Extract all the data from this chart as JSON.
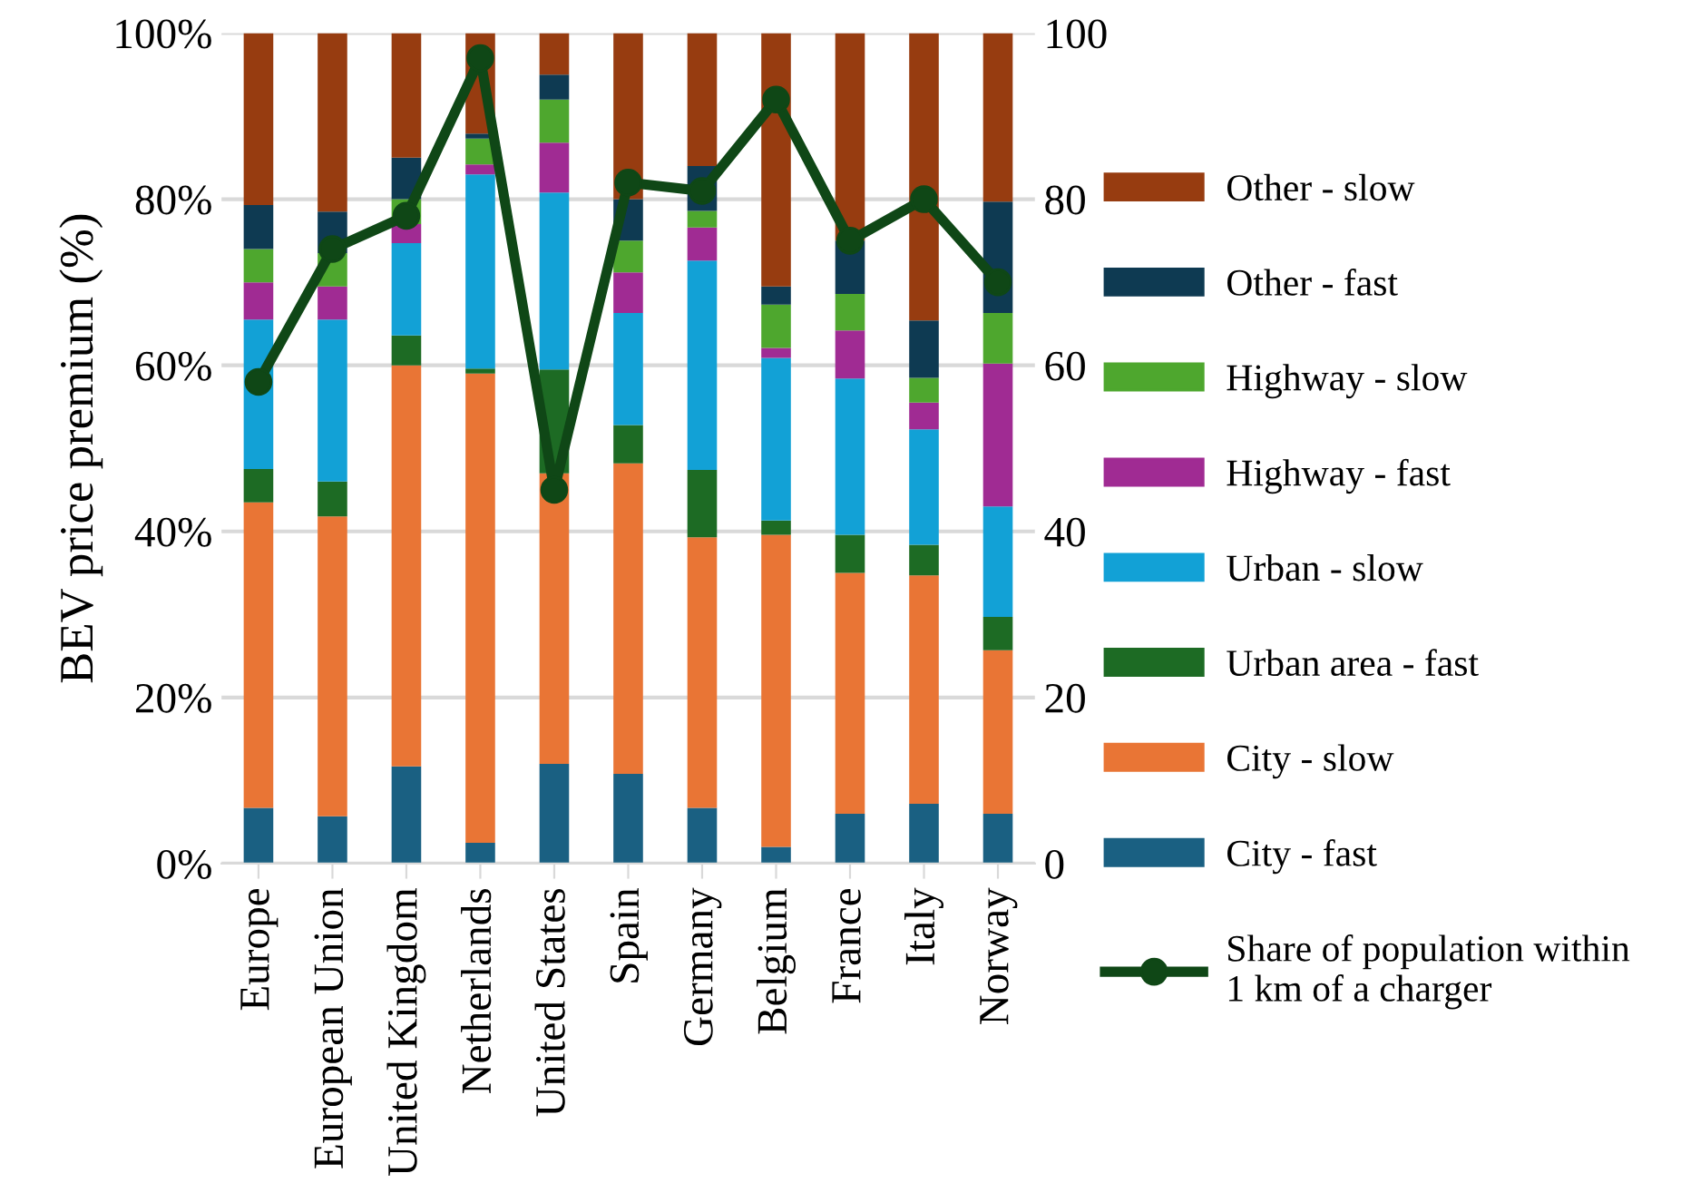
{
  "chart_data": {
    "type": "bar",
    "stacked": true,
    "ylabel": "BEV price premium (%)",
    "categories": [
      "Europe",
      "European Union",
      "United Kingdom",
      "Netherlands",
      "United States",
      "Spain",
      "Germany",
      "Belgium",
      "France",
      "Italy",
      "Norway"
    ],
    "series": [
      {
        "name": "City - fast",
        "color": "#1a6082",
        "values": [
          6.7,
          5.7,
          11.7,
          2.5,
          12,
          10.8,
          6.7,
          2,
          6,
          7.2,
          6
        ]
      },
      {
        "name": "City - slow",
        "color": "#e97535",
        "values": [
          36.8,
          36.1,
          48.3,
          56.5,
          35,
          37.4,
          32.6,
          37.6,
          29,
          27.5,
          19.7
        ]
      },
      {
        "name": "Urban area - fast",
        "color": "#1d6b24",
        "values": [
          4,
          4.2,
          3.6,
          0.6,
          12.5,
          4.6,
          8.1,
          1.7,
          4.6,
          3.7,
          4
        ]
      },
      {
        "name": "Urban - slow",
        "color": "#12a1d6",
        "values": [
          18,
          19.5,
          11.1,
          23.4,
          21.3,
          13.5,
          25.2,
          19.6,
          18.8,
          13.9,
          13.3
        ]
      },
      {
        "name": "Highway - fast",
        "color": "#a02b93",
        "values": [
          4.5,
          4,
          2.3,
          1.2,
          6,
          4.9,
          4,
          1.2,
          5.8,
          3.2,
          17.2
        ]
      },
      {
        "name": "Highway - slow",
        "color": "#4ea72e",
        "values": [
          4,
          4,
          3,
          3.1,
          5.2,
          3.8,
          2,
          5.2,
          4.4,
          3,
          6.1
        ]
      },
      {
        "name": "Other - fast",
        "color": "#0e3a52",
        "values": [
          5.3,
          5,
          5,
          0.6,
          3,
          5,
          5.4,
          2.2,
          6.4,
          6.9,
          13.4
        ]
      },
      {
        "name": "Other - slow",
        "color": "#973c10",
        "values": [
          20.7,
          21.5,
          15,
          12.1,
          5,
          20,
          16,
          30.5,
          25,
          34.6,
          20.3
        ]
      },
      {
        "name": "Share of population within\n1 km of a charger",
        "type": "line",
        "axis": "y2",
        "color": "#0f4716",
        "marker": "circle",
        "values": [
          58,
          74,
          78,
          97,
          45,
          82,
          81,
          92,
          75,
          80,
          70
        ]
      }
    ],
    "ylim": [
      0,
      100
    ],
    "yticks": [
      {
        "value": 0,
        "label": "0%"
      },
      {
        "value": 20,
        "label": "20%"
      },
      {
        "value": 40,
        "label": "40%"
      },
      {
        "value": 60,
        "label": "60%"
      },
      {
        "value": 80,
        "label": "80%"
      },
      {
        "value": 100,
        "label": "100%"
      }
    ],
    "y2lim": [
      0,
      100
    ],
    "y2ticks": [
      0,
      20,
      40,
      60,
      80,
      100
    ],
    "grid": "y",
    "legend": "right"
  }
}
